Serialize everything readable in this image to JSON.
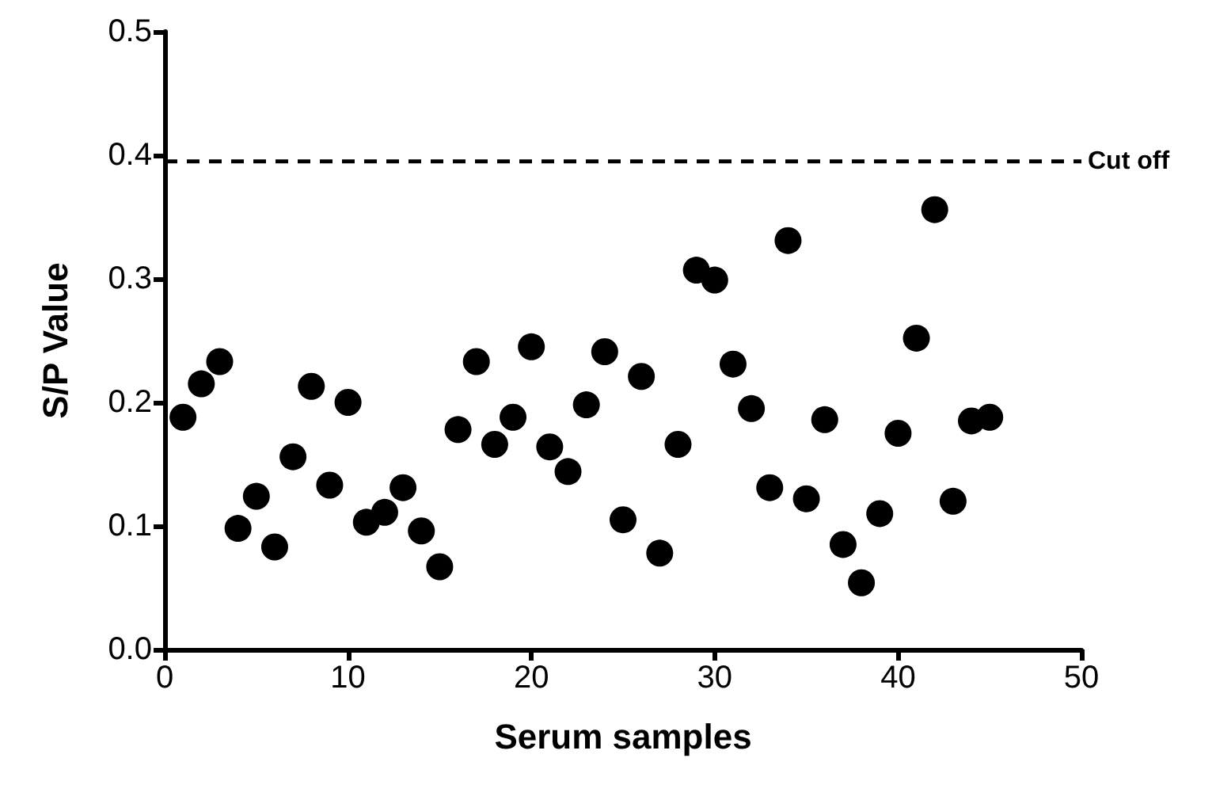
{
  "chart_data": {
    "type": "scatter",
    "xlabel": "Serum samples",
    "ylabel": "S/P Value",
    "x": [
      1,
      2,
      3,
      4,
      5,
      6,
      7,
      8,
      9,
      10,
      11,
      12,
      13,
      14,
      15,
      16,
      17,
      18,
      19,
      20,
      21,
      22,
      23,
      24,
      25,
      26,
      27,
      28,
      29,
      30,
      31,
      32,
      33,
      34,
      35,
      36,
      37,
      38,
      39,
      40,
      41,
      42,
      43,
      44,
      45
    ],
    "series": [
      {
        "color": "#000000",
        "values": [
          0.188,
          0.215,
          0.233,
          0.098,
          0.124,
          0.083,
          0.156,
          0.213,
          0.133,
          0.2,
          0.103,
          0.111,
          0.131,
          0.096,
          0.067,
          0.178,
          0.233,
          0.166,
          0.188,
          0.245,
          0.164,
          0.144,
          0.198,
          0.241,
          0.105,
          0.221,
          0.078,
          0.166,
          0.307,
          0.299,
          0.231,
          0.195,
          0.131,
          0.331,
          0.122,
          0.186,
          0.085,
          0.054,
          0.11,
          0.175,
          0.252,
          0.356,
          0.12,
          0.185,
          0.188
        ]
      }
    ],
    "xlim": [
      0,
      50
    ],
    "xticks": [
      0,
      10,
      20,
      30,
      40,
      50
    ],
    "ylim": [
      0,
      0.5
    ],
    "yticks": [
      {
        "value": 0,
        "label": "0.0"
      },
      0.1,
      0.2,
      0.3,
      0.4,
      0.5
    ],
    "ref_lines": [
      {
        "axis": "y",
        "value": 0.395,
        "label": "Cut off",
        "color": "#000000",
        "line_style": "dashed"
      }
    ],
    "grid": false,
    "marker": "circle"
  }
}
